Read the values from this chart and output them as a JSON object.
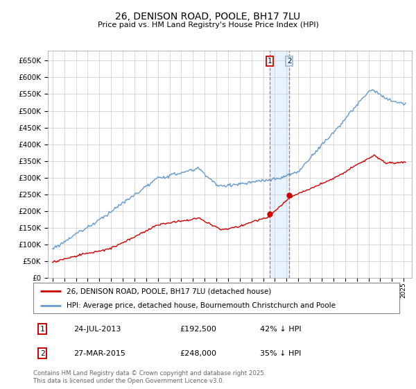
{
  "title": "26, DENISON ROAD, POOLE, BH17 7LU",
  "subtitle": "Price paid vs. HM Land Registry's House Price Index (HPI)",
  "ylim": [
    0,
    680000
  ],
  "sale1_date": 2013.56,
  "sale1_price": 192500,
  "sale2_date": 2015.24,
  "sale2_price": 248000,
  "red_line_color": "#cc0000",
  "blue_line_color": "#6699cc",
  "vline_color": "#dd4444",
  "shade_color": "#ddeeff",
  "legend_label1": "26, DENISON ROAD, POOLE, BH17 7LU (detached house)",
  "legend_label2": "HPI: Average price, detached house, Bournemouth Christchurch and Poole",
  "table_row1": [
    "1",
    "24-JUL-2013",
    "£192,500",
    "42% ↓ HPI"
  ],
  "table_row2": [
    "2",
    "27-MAR-2015",
    "£248,000",
    "35% ↓ HPI"
  ],
  "footnote": "Contains HM Land Registry data © Crown copyright and database right 2025.\nThis data is licensed under the Open Government Licence v3.0.",
  "background_color": "#ffffff",
  "grid_color": "#cccccc"
}
